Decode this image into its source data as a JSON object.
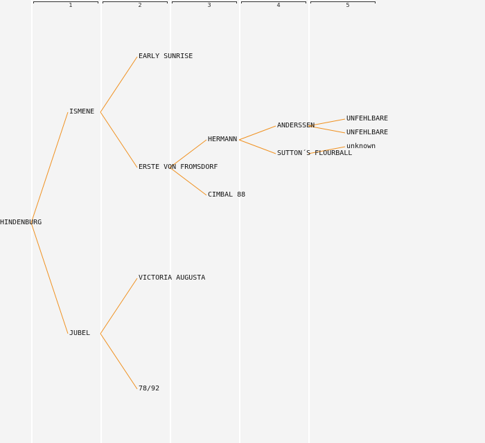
{
  "generations": [
    "1",
    "2",
    "3",
    "4",
    "5"
  ],
  "colors": {
    "background": "#f4f4f4",
    "link": "#f0901e",
    "column_line": "#ffffff",
    "text": "#111111"
  },
  "tree": {
    "name": "HINDENBURG",
    "children": [
      {
        "name": "ISMENE",
        "children": [
          {
            "name": "EARLY SUNRISE"
          },
          {
            "name": "ERSTE VON FROMSDORF",
            "children": [
              {
                "name": "HERMANN",
                "children": [
                  {
                    "name": "ANDERSSEN",
                    "children": [
                      {
                        "name": "UNFEHLBARE"
                      },
                      {
                        "name": "UNFEHLBARE"
                      }
                    ]
                  },
                  {
                    "name": "SUTTON´S FLOURBALL",
                    "children": [
                      {
                        "name": "unknown"
                      }
                    ]
                  }
                ]
              },
              {
                "name": "CIMBAL 88"
              }
            ]
          }
        ]
      },
      {
        "name": "JUBEL",
        "children": [
          {
            "name": "VICTORIA AUGUSTA"
          },
          {
            "name": "78/92"
          }
        ]
      }
    ]
  }
}
